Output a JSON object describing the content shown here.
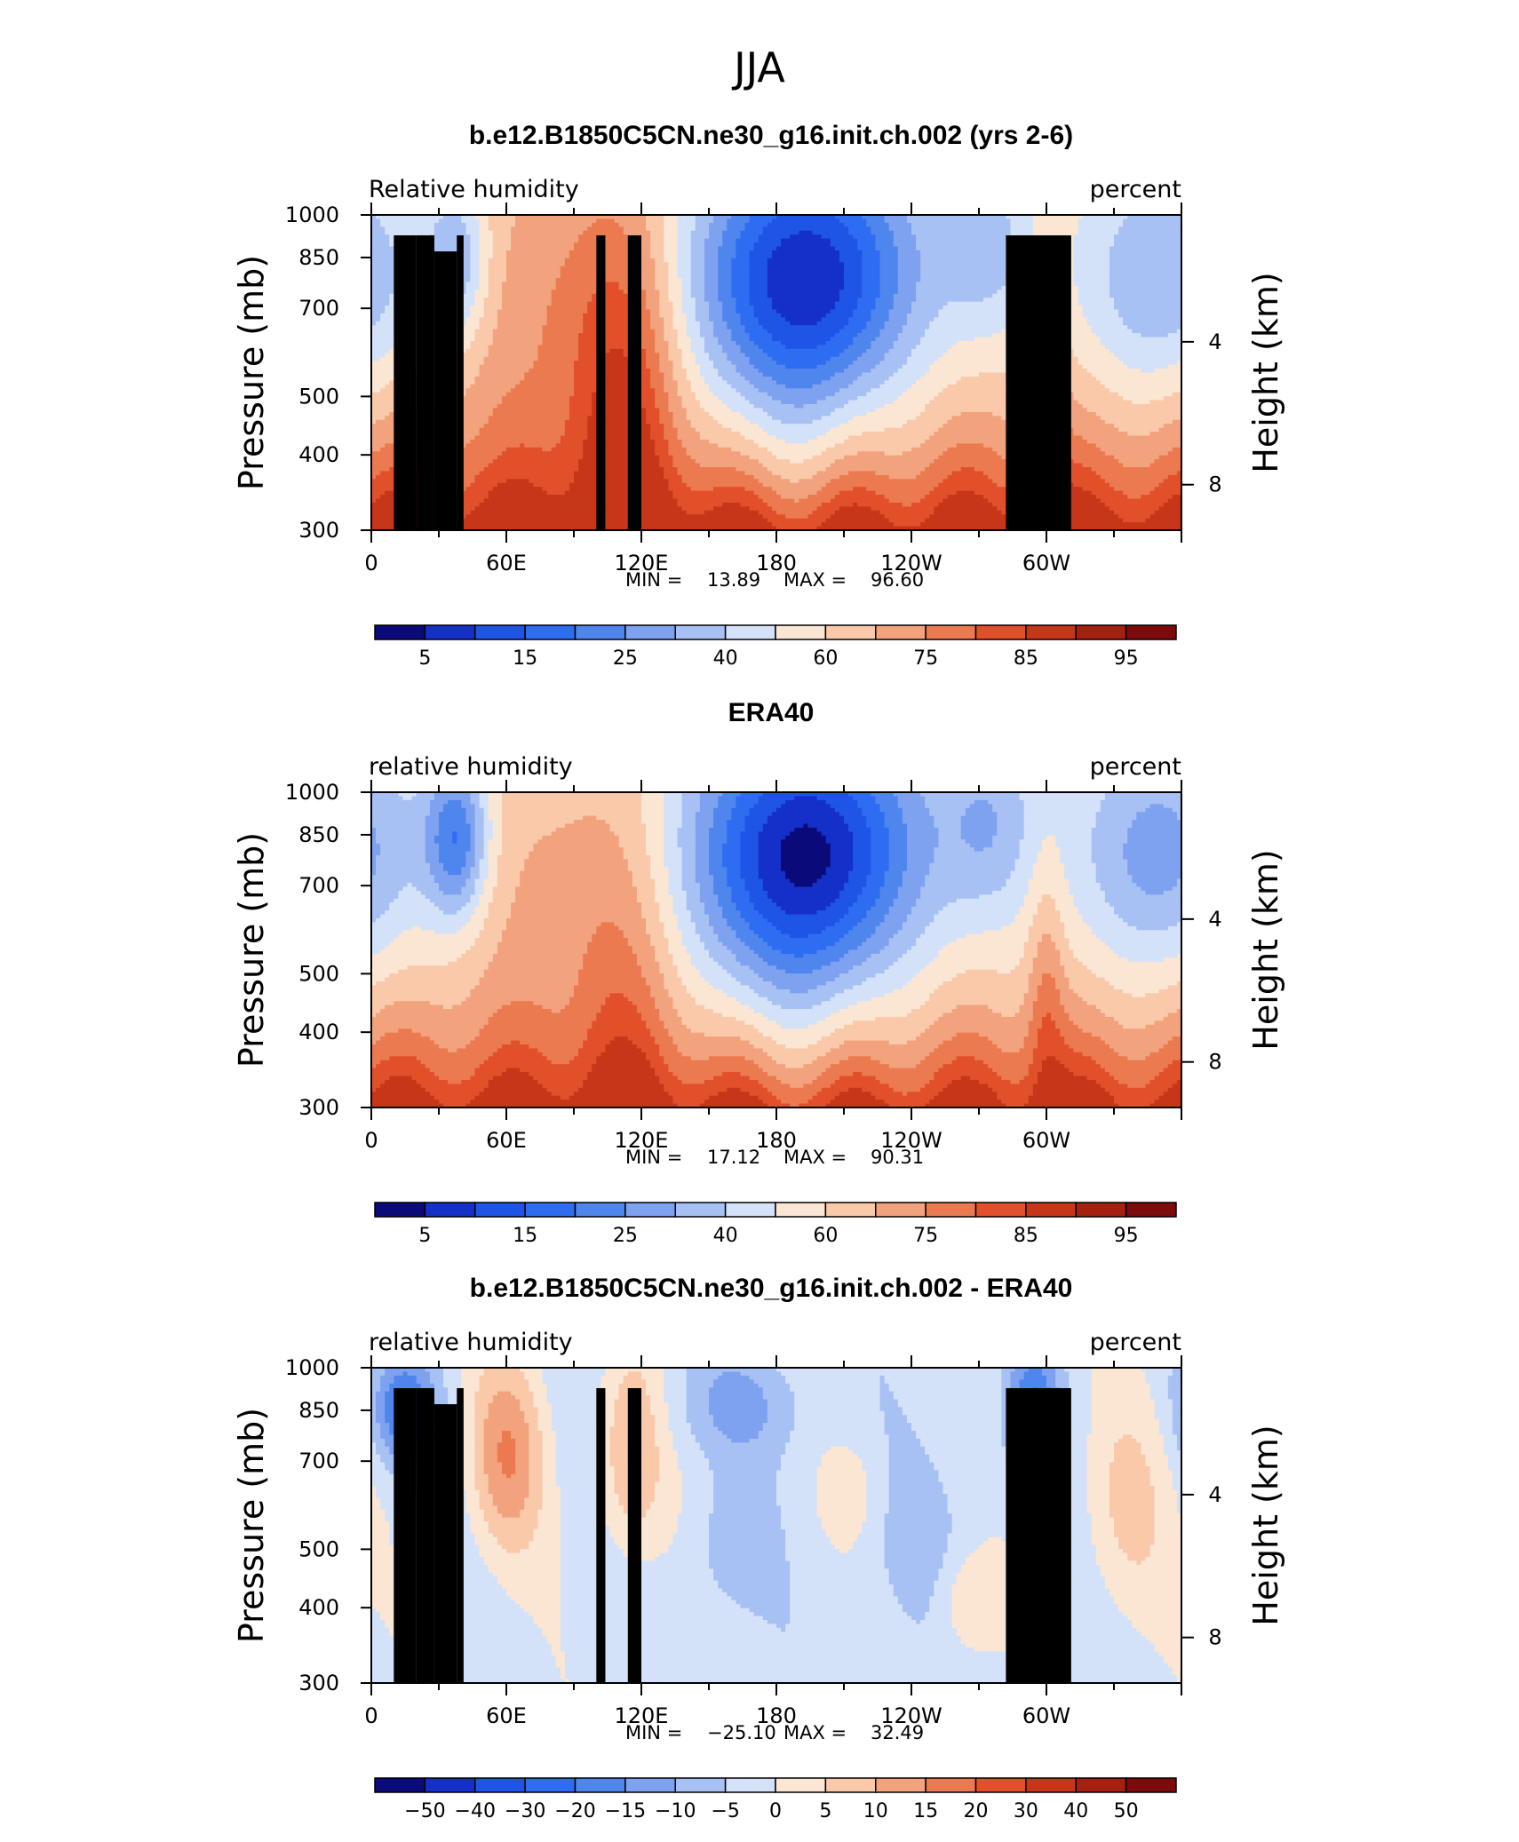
{
  "chart_data": {
    "type": "contour",
    "title": "JJA",
    "panels": [
      {
        "title": "b.e12.B1850C5CN.ne30_g16.init.ch.002 (yrs 2-6)",
        "left_label": "Relative humidity",
        "right_label": "percent",
        "ylabel": "Pressure (mb)",
        "ylabel_right": "Height (km)",
        "yticks": [
          "300",
          "400",
          "500",
          "700",
          "850",
          "1000"
        ],
        "yticks_right": [
          "8",
          "4"
        ],
        "xticks": [
          "0",
          "60E",
          "120E",
          "180",
          "120W",
          "60W"
        ],
        "xlim": [
          0,
          360
        ],
        "ylim_mb": [
          1000,
          300
        ],
        "stats": {
          "min_label": "MIN =",
          "min": "13.89",
          "max_label": "MAX =",
          "max": "96.60"
        },
        "colorbar_labels": [
          "5",
          "15",
          "25",
          "40",
          "60",
          "75",
          "85",
          "95"
        ],
        "field_index": 0,
        "show_topography": true,
        "fields": {
          "t0": 0.56,
          "tb": 0.78,
          "cap": 0.86
        }
      },
      {
        "title": "ERA40",
        "left_label": "relative humidity",
        "right_label": "percent",
        "ylabel": "Pressure (mb)",
        "ylabel_right": "Height (km)",
        "yticks": [
          "300",
          "400",
          "500",
          "700",
          "850",
          "1000"
        ],
        "yticks_right": [
          "8",
          "4"
        ],
        "xticks": [
          "0",
          "60E",
          "120E",
          "180",
          "120W",
          "60W"
        ],
        "xlim": [
          0,
          360
        ],
        "ylim_mb": [
          1000,
          300
        ],
        "stats": {
          "min_label": "MIN =",
          "min": "17.12",
          "max_label": "MAX =",
          "max": "90.31"
        },
        "colorbar_labels": [
          "5",
          "15",
          "25",
          "40",
          "60",
          "75",
          "85",
          "95"
        ],
        "field_index": 1,
        "show_topography": false,
        "fields": {
          "t0": 0.58,
          "tb": 0.76,
          "cap": 0.82
        }
      },
      {
        "title": "b.e12.B1850C5CN.ne30_g16.init.ch.002 - ERA40",
        "left_label": "relative humidity",
        "right_label": "percent",
        "ylabel": "Pressure (mb)",
        "ylabel_right": "Height (km)",
        "yticks": [
          "300",
          "400",
          "500",
          "700",
          "850",
          "1000"
        ],
        "yticks_right": [
          "8",
          "4"
        ],
        "xticks": [
          "0",
          "60E",
          "120E",
          "180",
          "120W",
          "60W"
        ],
        "xlim": [
          0,
          360
        ],
        "ylim_mb": [
          1000,
          300
        ],
        "stats": {
          "min_label": "MIN =",
          "min": "−25.10",
          "max_label": "MAX =",
          "max": "32.49"
        },
        "colorbar_labels": [
          "−50",
          "−40",
          "−30",
          "−20",
          "−15",
          "−10",
          "−5",
          "0",
          "5",
          "10",
          "15",
          "20",
          "30",
          "40",
          "50"
        ],
        "field_index": 2,
        "show_topography": true,
        "fields": {
          "t0": 0.52,
          "tb": 0.5,
          "cap": 0.6
        }
      }
    ],
    "colormap": [
      "#0a0a7a",
      "#1530c8",
      "#1f55e6",
      "#2e6cf2",
      "#4f86ee",
      "#7ea2f0",
      "#a8c1f4",
      "#d3e2f8",
      "#fbe6d4",
      "#f9c9aa",
      "#f2a27c",
      "#ec7a50",
      "#e2502b",
      "#c73618",
      "#a5200f",
      "#7e0b0b"
    ],
    "topography": [
      {
        "lon0": 10,
        "lon1": 20,
        "level_mb": 925
      },
      {
        "lon0": 20,
        "lon1": 28,
        "level_mb": 925
      },
      {
        "lon0": 28,
        "lon1": 38,
        "level_mb": 870
      },
      {
        "lon0": 38,
        "lon1": 41,
        "level_mb": 925
      },
      {
        "lon0": 100,
        "lon1": 104,
        "level_mb": 925
      },
      {
        "lon0": 114,
        "lon1": 120,
        "level_mb": 925
      },
      {
        "lon0": 282,
        "lon1": 311,
        "level_mb": 925
      }
    ]
  }
}
